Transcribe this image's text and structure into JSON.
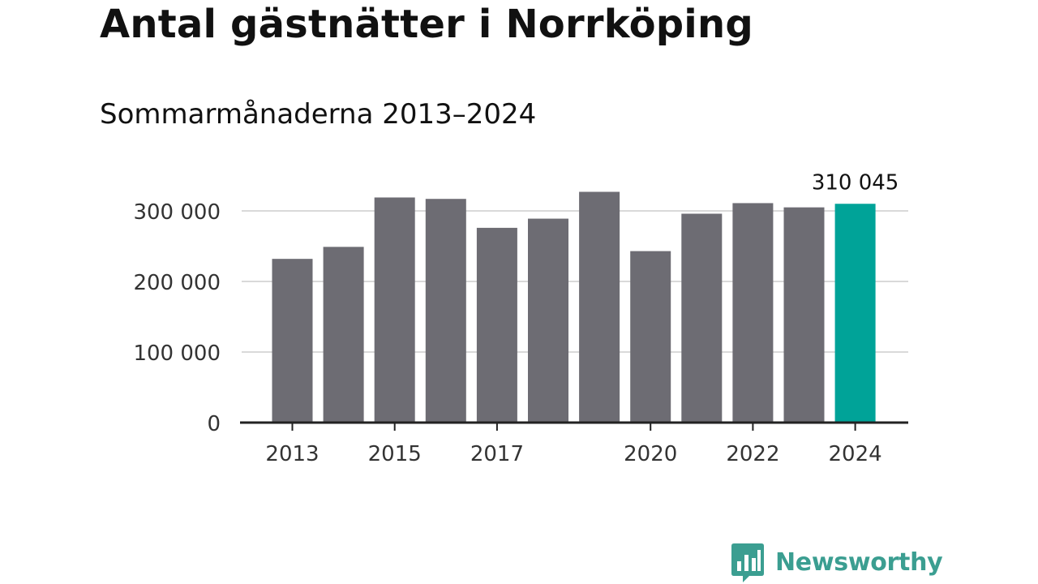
{
  "title": "Antal gästnätter i Norrköping",
  "subtitle": "Sommarmånaderna 2013–2024",
  "brand": {
    "name": "Newsworthy",
    "color": "#3b9e91",
    "icon": "bar-chart-speech-bubble-icon"
  },
  "colors": {
    "bar": "#6d6c73",
    "highlight": "#00a398",
    "grid": "#d9d9d9",
    "axis": "#222222",
    "tick_text": "#333333"
  },
  "chart_data": {
    "type": "bar",
    "categories": [
      "2013",
      "2014",
      "2015",
      "2016",
      "2017",
      "2018",
      "2019",
      "2020",
      "2021",
      "2022",
      "2023",
      "2024"
    ],
    "values": [
      232000,
      249000,
      319000,
      317000,
      276000,
      289000,
      327000,
      243000,
      296000,
      311000,
      305000,
      310045
    ],
    "x_tick_labels": [
      "2013",
      "",
      "2015",
      "",
      "2017",
      "",
      "",
      "2020",
      "",
      "2022",
      "",
      "2024"
    ],
    "y_ticks": [
      0,
      100000,
      200000,
      300000
    ],
    "y_tick_labels": [
      "0",
      "100 000",
      "200 000",
      "300 000"
    ],
    "ylim": [
      0,
      340000
    ],
    "highlight_index": 11,
    "annotation": "310 045",
    "grid": true,
    "xlabel": "",
    "ylabel": ""
  }
}
